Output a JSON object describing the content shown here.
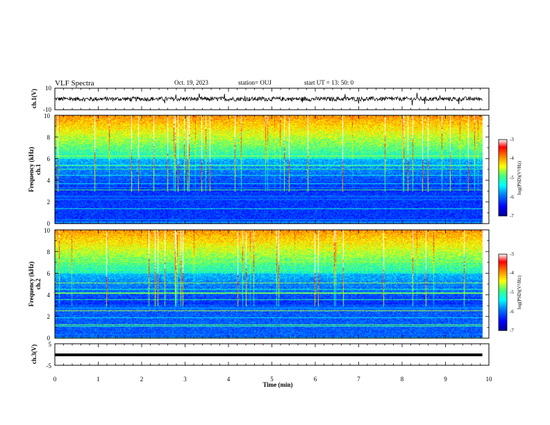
{
  "header": {
    "title": "VLF Spectra",
    "date": "Oct. 19, 2023",
    "station": "station= OUJ",
    "start": "start  UT  =   13: 50: 0"
  },
  "colors": {
    "background": "#ffffff",
    "axes": "#000000",
    "trace": "#000000",
    "colormap": [
      "#000090",
      "#0000ff",
      "#00c0ff",
      "#00ffff",
      "#40ff80",
      "#ffff00",
      "#ff8000",
      "#ff0000",
      "#ffffff"
    ]
  },
  "chart_data": [
    {
      "type": "line",
      "name": "ch1-waveform",
      "ylabel": "ch.1(V)",
      "ylim": [
        -10,
        10
      ],
      "yticklabels": [
        "10",
        "-10"
      ],
      "xlim": [
        0,
        10
      ],
      "description_level_v": 0,
      "noise_amplitude_v": 2
    },
    {
      "type": "heatmap",
      "name": "ch1-spectrogram",
      "ylabel": "ch.1\nFrequency  (kHz)",
      "ylim": [
        0,
        10
      ],
      "yticklabels": [
        "0",
        "2",
        "4",
        "6",
        "8",
        "10"
      ],
      "xlim": [
        0,
        10
      ],
      "colorbar": {
        "label": "log(PSD)(V²/Hz)",
        "range": [
          -7,
          -3
        ],
        "ticks": [
          "-7",
          "-6",
          "-5",
          "-4",
          "-3"
        ]
      },
      "bright_band_khz": [
        6,
        10
      ],
      "quiet_band_khz": [
        3,
        6
      ],
      "low_band_level": -6.2
    },
    {
      "type": "heatmap",
      "name": "ch2-spectrogram",
      "ylabel": "ch.2\nFrequency  (kHz)",
      "ylim": [
        0,
        10
      ],
      "yticklabels": [
        "0",
        "2",
        "4",
        "6",
        "8",
        "10"
      ],
      "xlim": [
        0,
        10
      ],
      "colorbar": {
        "label": "log(PSD)(V²/Hz)",
        "range": [
          -7,
          -3
        ],
        "ticks": [
          "-7",
          "-6",
          "-5",
          "-4",
          "-3"
        ]
      },
      "bright_band_khz": [
        6,
        10
      ],
      "quiet_band_khz": [
        3,
        6
      ],
      "low_band_level": -6.0
    },
    {
      "type": "line",
      "name": "ch3-waveform",
      "ylabel": "ch.3(V)",
      "ylim": [
        -5,
        5
      ],
      "yticklabels": [
        "5",
        "-5"
      ],
      "xlim": [
        0,
        10
      ],
      "level_v": 0
    }
  ],
  "xaxis": {
    "label": "Time  (min)",
    "ticklabels": [
      "0",
      "1",
      "2",
      "3",
      "4",
      "5",
      "6",
      "7",
      "8",
      "9",
      "10"
    ],
    "data_end_min": 9.85
  }
}
